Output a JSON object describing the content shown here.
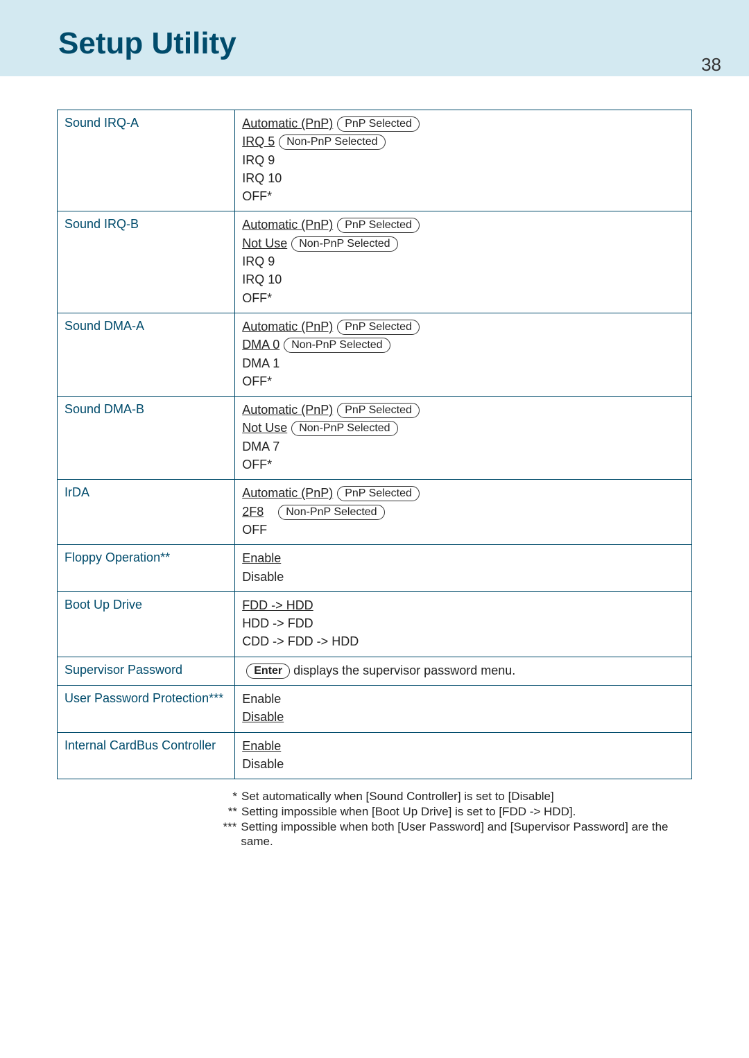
{
  "header": {
    "title": "Setup Utility",
    "page_number": "38"
  },
  "colors": {
    "header_bg": "#d3e9f1",
    "header_text": "#004b6b",
    "border": "#004b6b",
    "label_text": "#004b6b",
    "body_text": "#222222",
    "page_bg": "#ffffff"
  },
  "pill_labels": {
    "pnp": "PnP Selected",
    "nonpnp": "Non-PnP Selected",
    "enter": "Enter"
  },
  "rows": [
    {
      "label": "Sound IRQ-A",
      "options": [
        {
          "text": "Automatic (PnP)",
          "underlined": true,
          "pill": "pnp"
        },
        {
          "text": "IRQ 5",
          "underlined": true,
          "pill": "nonpnp"
        },
        {
          "text": "IRQ 9"
        },
        {
          "text": "IRQ 10"
        },
        {
          "text": "OFF*"
        }
      ]
    },
    {
      "label": "Sound IRQ-B",
      "options": [
        {
          "text": "Automatic (PnP)",
          "underlined": true,
          "pill": "pnp"
        },
        {
          "text": "Not Use",
          "underlined": true,
          "pill": "nonpnp"
        },
        {
          "text": "IRQ 9"
        },
        {
          "text": "IRQ 10"
        },
        {
          "text": "OFF*"
        }
      ]
    },
    {
      "label": "Sound DMA-A",
      "options": [
        {
          "text": "Automatic (PnP)",
          "underlined": true,
          "pill": "pnp"
        },
        {
          "text": "DMA 0",
          "underlined": true,
          "pill": "nonpnp"
        },
        {
          "text": "DMA 1"
        },
        {
          "text": "OFF*"
        }
      ]
    },
    {
      "label": "Sound DMA-B",
      "options": [
        {
          "text": "Automatic (PnP)",
          "underlined": true,
          "pill": "pnp"
        },
        {
          "text": "Not Use",
          "underlined": true,
          "pill": "nonpnp"
        },
        {
          "text": "DMA 7"
        },
        {
          "text": "OFF*"
        }
      ]
    },
    {
      "label": "IrDA",
      "options": [
        {
          "text": "Automatic (PnP)",
          "underlined": true,
          "pill": "pnp"
        },
        {
          "text": "2F8",
          "underlined": true,
          "pill": "nonpnp",
          "gap_after_text": true
        },
        {
          "text": "OFF"
        }
      ]
    },
    {
      "label": "Floppy Operation**",
      "options": [
        {
          "text": "Enable",
          "underlined": true
        },
        {
          "text": "Disable"
        }
      ]
    },
    {
      "label": "Boot Up Drive",
      "options": [
        {
          "text": "FDD -> HDD",
          "underlined": true
        },
        {
          "text": "HDD -> FDD"
        },
        {
          "text": "CDD -> FDD -> HDD"
        }
      ]
    },
    {
      "label": "Supervisor Password",
      "special": "supervisor",
      "supervisor_suffix": " displays the supervisor password menu."
    },
    {
      "label": "User Password Protection***",
      "options": [
        {
          "text": "Enable"
        },
        {
          "text": "Disable",
          "underlined": true
        }
      ]
    },
    {
      "label": "Internal CardBus Controller",
      "options": [
        {
          "text": "Enable",
          "underlined": true
        },
        {
          "text": "Disable"
        }
      ]
    }
  ],
  "footnotes": [
    {
      "mark": "*",
      "text": "Set automatically when [Sound Controller] is set to [Disable]"
    },
    {
      "mark": "**",
      "text": "Setting impossible when [Boot Up Drive] is set to [FDD -> HDD]."
    },
    {
      "mark": "***",
      "text": "Setting impossible when both [User Password] and [Supervisor Password] are the same."
    }
  ]
}
